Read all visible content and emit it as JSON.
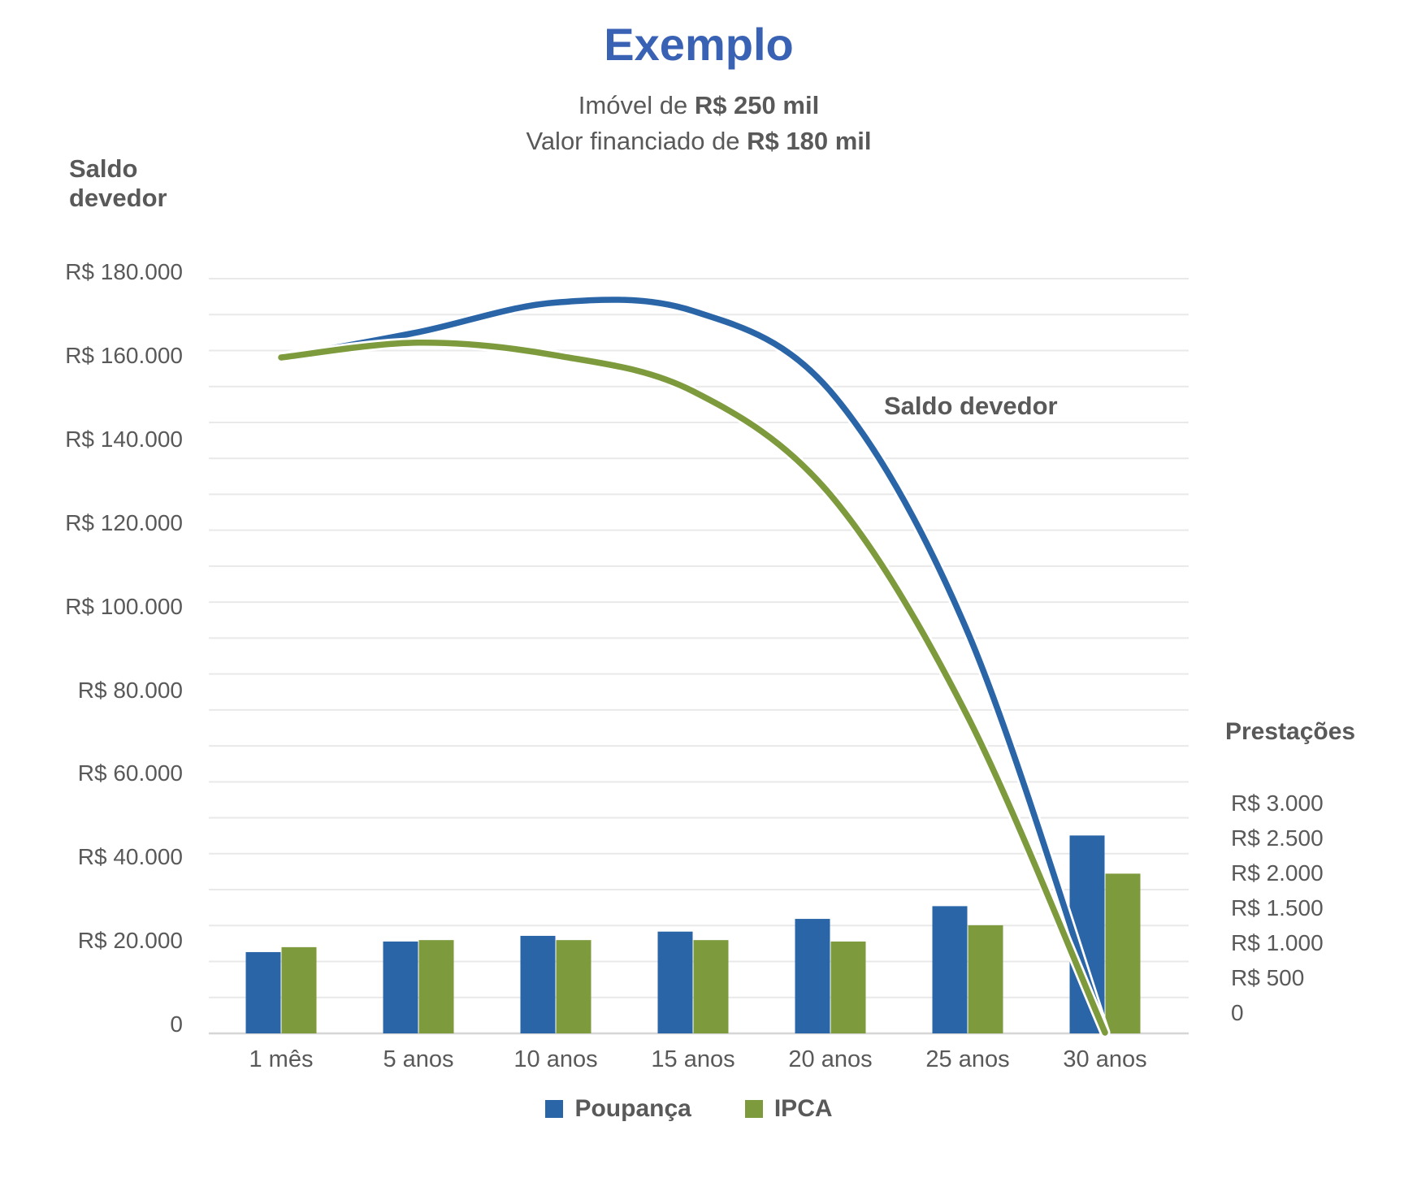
{
  "header": {
    "title": "Exemplo",
    "subtitle1_prefix": "Imóvel de ",
    "subtitle1_bold": "R$ 250 mil",
    "subtitle2_prefix": "Valor financiado de ",
    "subtitle2_bold": "R$ 180 mil"
  },
  "colors": {
    "title_blue": "#3A62B4",
    "poupanca_blue": "#2A65A8",
    "ipca_green": "#7D9A3C",
    "text_gray": "#595959",
    "gridline": "#e9e9e9",
    "axis_line": "#d6d6d6",
    "curve_casing": "#ffffff"
  },
  "chart_data": {
    "type": "combo",
    "categories": [
      "1 mês",
      "5 anos",
      "10 anos",
      "15 anos",
      "20 anos",
      "25 anos",
      "30 anos"
    ],
    "left_axis": {
      "title": "Saldo devedor",
      "ticks": [
        "R$ 180.000",
        "R$ 160.000",
        "R$ 140.000",
        "R$ 120.000",
        "R$ 100.000",
        "R$ 80.000",
        "R$ 60.000",
        "R$ 40.000",
        "R$ 20.000",
        "0"
      ],
      "range": [
        0,
        180000
      ],
      "tick_interval": 20000
    },
    "right_axis": {
      "title": "Prestações",
      "ticks": [
        "R$ 3.000",
        "R$ 2.500",
        "R$ 2.000",
        "R$ 1.500",
        "R$ 1.000",
        "R$ 500",
        "0"
      ],
      "range": [
        0,
        3000
      ],
      "tick_interval": 500
    },
    "annotation": "Saldo devedor",
    "line_series": [
      {
        "name": "Poupança",
        "axis": "left",
        "color": "#2A65A8",
        "values": [
          160000,
          166000,
          173000,
          171000,
          152000,
          95000,
          0
        ]
      },
      {
        "name": "IPCA",
        "axis": "left",
        "color": "#7D9A3C",
        "values": [
          160000,
          163500,
          160500,
          152000,
          127500,
          75000,
          0
        ]
      }
    ],
    "bar_series": [
      {
        "name": "Poupança",
        "axis": "right",
        "color": "#2A65A8",
        "values": [
          1150,
          1300,
          1380,
          1440,
          1620,
          1800,
          2800
        ]
      },
      {
        "name": "IPCA",
        "axis": "right",
        "color": "#7D9A3C",
        "values": [
          1220,
          1320,
          1320,
          1320,
          1300,
          1530,
          2260
        ]
      }
    ],
    "legend": {
      "position": "bottom",
      "items": [
        {
          "label": "Poupança"
        },
        {
          "label": "IPCA"
        }
      ]
    },
    "grid": true
  }
}
